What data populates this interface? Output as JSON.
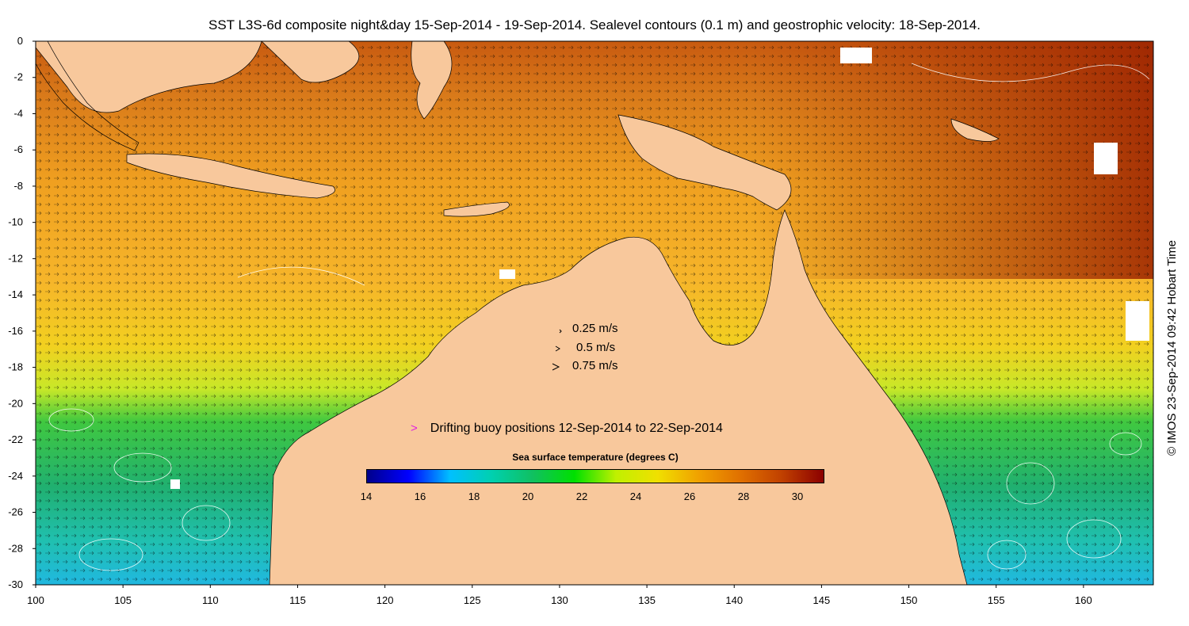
{
  "title": "SST L3S-6d composite night&day 15-Sep-2014 - 19-Sep-2014. Sealevel contours (0.1 m) and geostrophic velocity: 18-Sep-2014.",
  "credit": "© IMOS 23-Sep-2014 09:42 Hobart Time",
  "axes": {
    "x_ticks": [
      "100",
      "105",
      "110",
      "115",
      "120",
      "125",
      "130",
      "135",
      "140",
      "145",
      "150",
      "155",
      "160"
    ],
    "y_ticks": [
      "0",
      "-2",
      "-4",
      "-6",
      "-8",
      "-10",
      "-12",
      "-14",
      "-16",
      "-18",
      "-20",
      "-22",
      "-24",
      "-26",
      "-28",
      "-30"
    ],
    "lon_range": [
      100,
      164
    ],
    "lat_range": [
      -30,
      0
    ]
  },
  "velocity_scale": {
    "items": [
      {
        "label": "0.25 m/s"
      },
      {
        "label": "0.5 m/s"
      },
      {
        "label": "0.75 m/s"
      }
    ]
  },
  "buoys": {
    "marker": ">",
    "label": "Drifting buoy positions 12-Sep-2014 to 22-Sep-2014",
    "color": "#e020e0"
  },
  "colorbar": {
    "title": "Sea surface temperature (degrees C)",
    "ticks": [
      "14",
      "16",
      "18",
      "20",
      "22",
      "24",
      "26",
      "28",
      "30"
    ],
    "range": [
      14,
      31
    ],
    "colors": [
      "#00008b",
      "#0000ff",
      "#00c0ff",
      "#00d0b0",
      "#10c060",
      "#00e000",
      "#c0f000",
      "#f0e000",
      "#f0a000",
      "#e07000",
      "#c04000",
      "#8b0000"
    ]
  },
  "colors": {
    "land": "#f8c89c",
    "contour": "#ffffff",
    "vector": "#000000"
  }
}
